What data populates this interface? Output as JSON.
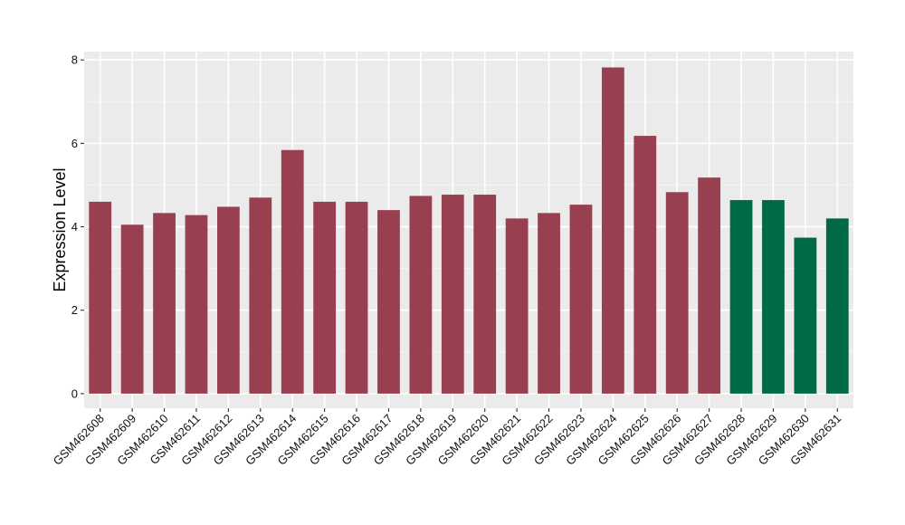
{
  "chart_data": {
    "type": "bar",
    "title": "",
    "xlabel": "",
    "ylabel": "Expression Level",
    "ylim": [
      -0.35,
      8.2
    ],
    "yticks": [
      0,
      2,
      4,
      6,
      8
    ],
    "grid": true,
    "legend": "none",
    "colors": {
      "panel_background": "#EBEBEB",
      "grid_major": "#FFFFFF",
      "grid_minor": "#F5F5F5",
      "group_a": "#984050",
      "group_b": "#006A46"
    },
    "categories": [
      "GSM462608",
      "GSM462609",
      "GSM462610",
      "GSM462611",
      "GSM462612",
      "GSM462613",
      "GSM462614",
      "GSM462615",
      "GSM462616",
      "GSM462617",
      "GSM462618",
      "GSM462619",
      "GSM462620",
      "GSM462621",
      "GSM462622",
      "GSM462623",
      "GSM462624",
      "GSM462625",
      "GSM462626",
      "GSM462627",
      "GSM462628",
      "GSM462629",
      "GSM462630",
      "GSM462631"
    ],
    "values": [
      4.6,
      4.05,
      4.33,
      4.28,
      4.48,
      4.7,
      5.84,
      4.6,
      4.6,
      4.4,
      4.74,
      4.77,
      4.77,
      4.2,
      4.33,
      4.53,
      7.82,
      6.18,
      4.83,
      5.18,
      4.64,
      4.64,
      3.74,
      4.2
    ],
    "bar_groups": [
      "group_a",
      "group_a",
      "group_a",
      "group_a",
      "group_a",
      "group_a",
      "group_a",
      "group_a",
      "group_a",
      "group_a",
      "group_a",
      "group_a",
      "group_a",
      "group_a",
      "group_a",
      "group_a",
      "group_a",
      "group_a",
      "group_a",
      "group_a",
      "group_b",
      "group_b",
      "group_b",
      "group_b"
    ]
  }
}
